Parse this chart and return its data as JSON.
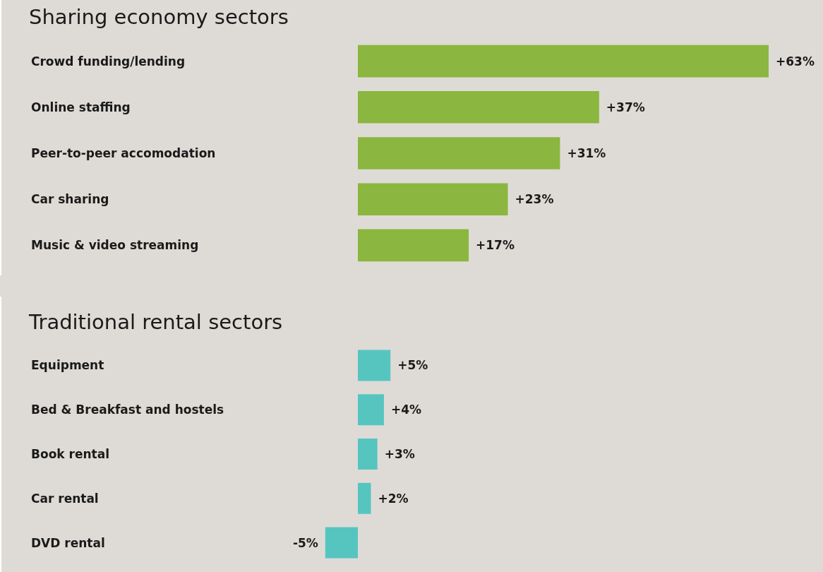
{
  "chart_data": [
    {
      "type": "bar",
      "orientation": "horizontal",
      "title": "Sharing economy sectors",
      "categories": [
        "Crowd funding/lending",
        "Online staffing",
        "Peer-to-peer accomodation",
        "Car sharing",
        "Music & video streaming"
      ],
      "values": [
        63,
        37,
        31,
        23,
        17
      ],
      "value_labels": [
        "+63%",
        "+37%",
        "+31%",
        "+23%",
        "+17%"
      ],
      "color": "#8bb63f"
    },
    {
      "type": "bar",
      "orientation": "horizontal",
      "title": "Traditional rental sectors",
      "categories": [
        "Equipment",
        "Bed & Breakfast and hostels",
        "Book rental",
        "Car rental",
        "DVD rental"
      ],
      "values": [
        5,
        4,
        3,
        2,
        -5
      ],
      "value_labels": [
        "+5%",
        "+4%",
        "+3%",
        "+2%",
        "-5%"
      ],
      "color": "#56c5c0"
    }
  ]
}
